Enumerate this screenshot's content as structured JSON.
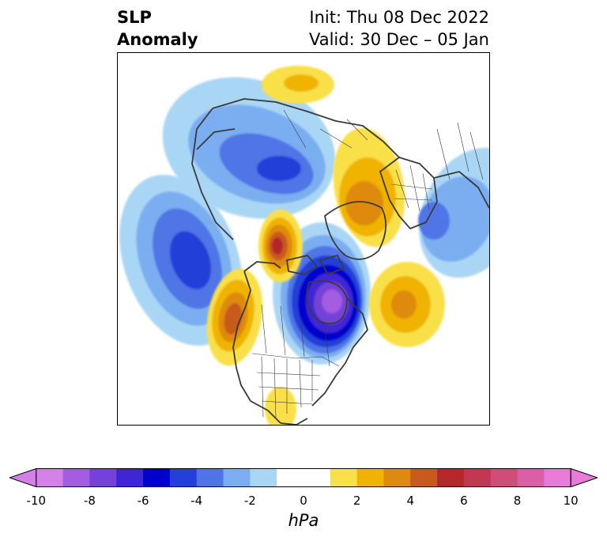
{
  "title": {
    "left_line1": "SLP",
    "left_line2": "Anomaly",
    "right_line1": "Init: Thu 08 Dec 2022",
    "right_line2": "Valid: 30 Dec – 05 Jan"
  },
  "colorbar": {
    "label": "hPa",
    "extend": "both",
    "levels": [
      -10,
      -9,
      -8,
      -7,
      -6,
      -5,
      -4,
      -3,
      -2,
      -1,
      1,
      2,
      3,
      4,
      5,
      6,
      7,
      8,
      9,
      10
    ],
    "colors": [
      "#d580e8",
      "#a45ce0",
      "#7442d8",
      "#3f25d4",
      "#0000cc",
      "#2340d8",
      "#4f74e6",
      "#7aaef0",
      "#aad6f6",
      "#ffffff",
      "#f9e04a",
      "#f0b400",
      "#de8a10",
      "#c85a1c",
      "#b4282a",
      "#c23852",
      "#cf4e78",
      "#dc5ea8",
      "#e87ad8"
    ],
    "ticks": [
      "-10",
      "-8",
      "-6",
      "-4",
      "-2",
      "0",
      "2",
      "4",
      "6",
      "8",
      "10"
    ]
  },
  "map": {
    "projection": "north-polar-stereographic",
    "features": [
      "coastlines",
      "country-borders",
      "us-state-borders",
      "canada-province-borders"
    ],
    "anomaly_centers": [
      {
        "region": "Gulf of Alaska / North Pacific",
        "sign": "negative",
        "peak_hpa": -6
      },
      {
        "region": "Hudson Bay / eastern Canada",
        "sign": "negative",
        "peak_hpa": -9
      },
      {
        "region": "northern Russia / Barents",
        "sign": "negative",
        "peak_hpa": -4
      },
      {
        "region": "Central Europe / Mediterranean",
        "sign": "negative",
        "peak_hpa": -4
      },
      {
        "region": "Arctic Ocean / Beaufort",
        "sign": "positive",
        "peak_hpa": 6
      },
      {
        "region": "western Canada / Pacific coast",
        "sign": "positive",
        "peak_hpa": 6
      },
      {
        "region": "Greenland / Iceland",
        "sign": "positive",
        "peak_hpa": 4
      },
      {
        "region": "central North Atlantic",
        "sign": "positive",
        "peak_hpa": 4
      },
      {
        "region": "East Siberia",
        "sign": "positive",
        "peak_hpa": 2
      },
      {
        "region": "southwestern US / Mexico",
        "sign": "positive",
        "peak_hpa": 1
      }
    ]
  }
}
